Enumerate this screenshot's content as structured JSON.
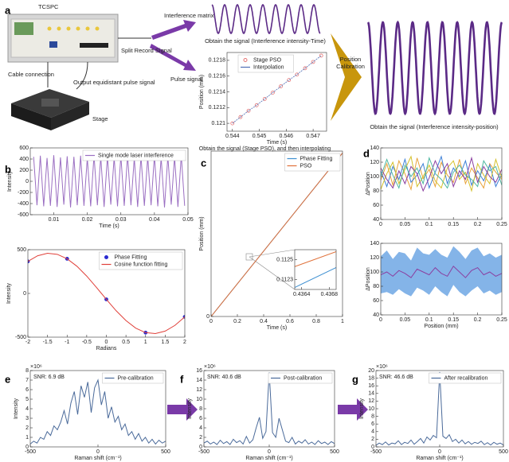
{
  "panels": [
    "a",
    "b",
    "c",
    "d",
    "e",
    "f",
    "g"
  ],
  "diagram": {
    "device": "TCSPC",
    "cable": "Cable connection",
    "pulse_out": "Output equidistant pulse signal",
    "stage": "Stage",
    "split": "Split Record Signal",
    "interference": "Interference matrix",
    "pulse": "Pulse signal",
    "caption_time": "Obtain the signal (Interference intensity-Time)",
    "calibration": [
      "Position",
      "Calibration"
    ],
    "caption_position": "Obtain the signal (Interference intensity-position)"
  },
  "chart_data": [
    {
      "type": "line",
      "caption": "Obtain the signal (Stage PSO), and then interpolating",
      "xlabel": "Time (s)",
      "ylabel": "Position (mm)",
      "x": [
        0.544,
        0.5443,
        0.5446,
        0.5449,
        0.5452,
        0.5455,
        0.5458,
        0.5461,
        0.5464,
        0.5467,
        0.547,
        0.5473
      ],
      "series": [
        {
          "name": "Stage PSO",
          "color": "#e57373",
          "style": "points",
          "values": [
            0.121,
            0.12108,
            0.12116,
            0.12123,
            0.12131,
            0.12139,
            0.12147,
            0.12155,
            0.12162,
            0.1217,
            0.12178,
            0.12186
          ]
        },
        {
          "name": "Interpolation",
          "color": "#4f6fb5",
          "values": [
            0.121,
            0.12108,
            0.12116,
            0.12123,
            0.12131,
            0.12139,
            0.12147,
            0.12155,
            0.12162,
            0.1217,
            0.12178,
            0.12186
          ]
        }
      ],
      "xlim": [
        0.5438,
        0.5475
      ],
      "xticks": [
        0.544,
        0.545,
        0.546,
        0.547
      ],
      "ylim": [
        0.1209,
        0.1219
      ],
      "yticks": [
        0.121,
        0.1212,
        0.1214,
        0.1216,
        0.1218
      ],
      "legend": "upper left"
    },
    {
      "type": "line",
      "xlabel": "Time (s)",
      "ylabel": "Intensity",
      "x": [
        0.004,
        0.005,
        0.006,
        0.007,
        0.008,
        0.009,
        0.01,
        0.011,
        0.012,
        0.013,
        0.014,
        0.015,
        0.016,
        0.017,
        0.018,
        0.019,
        0.02,
        0.021,
        0.022,
        0.023,
        0.024,
        0.025,
        0.026,
        0.027,
        0.028,
        0.029,
        0.03,
        0.031,
        0.032,
        0.033,
        0.034,
        0.035,
        0.036,
        0.037,
        0.038,
        0.039,
        0.04,
        0.041,
        0.042,
        0.043,
        0.044,
        0.045,
        0.046,
        0.047,
        0.048,
        0.049
      ],
      "series": [
        {
          "name": "Single mode laser interference",
          "color": "#9b6fc2",
          "values": [
            440,
            -430,
            460,
            -450,
            420,
            -440,
            470,
            -460,
            430,
            -420,
            450,
            -470,
            440,
            -430,
            460,
            -440,
            420,
            -450,
            470,
            -430,
            440,
            -460,
            450,
            -420,
            430,
            -450,
            460,
            -440,
            470,
            -430,
            420,
            -460,
            450,
            -440,
            440,
            -430,
            460,
            -450,
            430,
            -470,
            450,
            -420,
            440,
            -460,
            470,
            -440
          ]
        }
      ],
      "xlim": [
        0.003,
        0.05
      ],
      "xticks": [
        0.01,
        0.02,
        0.03,
        0.04,
        0.05
      ],
      "ylim": [
        -600,
        600
      ],
      "yticks": [
        -600,
        -400,
        -200,
        0,
        200,
        400,
        600
      ],
      "legend": "upper right"
    },
    {
      "type": "line",
      "xlabel": "Radians",
      "ylabel": "Intensity",
      "x": [
        -2,
        -1.75,
        -1.5,
        -1.25,
        -1,
        -0.75,
        -0.5,
        -0.25,
        0,
        0.25,
        0.5,
        0.75,
        1,
        1.25,
        1.5,
        1.75,
        2
      ],
      "series": [
        {
          "name": "Phase Fitting",
          "color": "#2a2ad0",
          "style": "points",
          "values": [
            366,
            null,
            null,
            null,
            396,
            null,
            null,
            null,
            -68,
            null,
            null,
            null,
            -448,
            null,
            null,
            null,
            -268
          ]
        },
        {
          "name": "Cosine function fitting",
          "color": "#e0403a",
          "values": [
            366,
            431,
            459,
            447,
            396,
            311,
            198,
            68,
            -68,
            -198,
            -310,
            -397,
            -448,
            -459,
            -431,
            -365,
            -268
          ]
        }
      ],
      "xlim": [
        -2,
        2
      ],
      "xticks": [
        -2,
        -1.5,
        -1,
        -0.5,
        0,
        0.5,
        1,
        1.5,
        2
      ],
      "ylim": [
        -500,
        500
      ],
      "yticks": [
        -500,
        0,
        500
      ],
      "legend": "upper right"
    },
    {
      "type": "line",
      "xlabel": "Time (s)",
      "ylabel": "Position (mm)",
      "x": [
        0,
        1
      ],
      "series": [
        {
          "name": "Phase Fitting",
          "color": "#3d8fd1",
          "values": [
            0,
            0.257
          ]
        },
        {
          "name": "PSO",
          "color": "#e0713a",
          "values": [
            0,
            0.257
          ]
        }
      ],
      "xlim": [
        0,
        1
      ],
      "xticks": [
        0,
        0.2,
        0.4,
        0.6,
        0.8,
        1
      ],
      "ylim": [
        0,
        0.26
      ],
      "yticks": [
        0
      ],
      "legend": "upper right"
    },
    {
      "type": "line",
      "x": [
        0.4363,
        0.4369
      ],
      "series": [
        {
          "color": "#3d8fd1",
          "values": [
            0.11222,
            0.11242
          ]
        },
        {
          "color": "#e0713a",
          "values": [
            0.11243,
            0.11258
          ]
        }
      ],
      "xlim": [
        0.4363,
        0.4369
      ],
      "xticks": [
        0.4364,
        0.4368
      ],
      "ylim": [
        0.1122,
        0.1126
      ],
      "yticks": [
        0.1123,
        0.1125
      ]
    },
    {
      "type": "line",
      "ylabel": "ΔPosition",
      "x": [
        0,
        0.0125,
        0.025,
        0.0375,
        0.05,
        0.0625,
        0.075,
        0.0875,
        0.1,
        0.1125,
        0.125,
        0.1375,
        0.15,
        0.1625,
        0.175,
        0.1875,
        0.2,
        0.2125,
        0.225,
        0.2375,
        0.25
      ],
      "series": [
        {
          "color": "#e8a33c",
          "values": [
            95,
            118,
            88,
            122,
            104,
            82,
            126,
            97,
            110,
            86,
            120,
            102,
            92,
            124,
            90,
            112,
            98,
            84,
            118,
            106,
            96
          ]
        },
        {
          "color": "#3c7fd6",
          "values": [
            108,
            86,
            114,
            96,
            124,
            92,
            102,
            118,
            84,
            106,
            128,
            90,
            112,
            100,
            122,
            88,
            108,
            94,
            116,
            86,
            104
          ]
        },
        {
          "color": "#d4c02a",
          "values": [
            82,
            104,
            120,
            90,
            110,
            128,
            86,
            100,
            116,
            94,
            84,
            112,
            122,
            96,
            106,
            80,
            118,
            102,
            90,
            124,
            98
          ]
        },
        {
          "color": "#8b3fa0",
          "values": [
            112,
            96,
            84,
            108,
            90,
            114,
            104,
            80,
            98,
            122,
            104,
            118,
            86,
            108,
            96,
            126,
            92,
            114,
            100,
            92,
            110
          ]
        },
        {
          "color": "#4fb8a0",
          "values": [
            100,
            124,
            102,
            84,
            116,
            100,
            112,
            90,
            126,
            104,
            96,
            84,
            106,
            116,
            102,
            96,
            86,
            122,
            108,
            114,
            88
          ]
        }
      ],
      "xlim": [
        0,
        0.25
      ],
      "xticks": [
        0,
        0.05,
        0.1,
        0.15,
        0.2,
        0.25
      ],
      "ylim": [
        40,
        140
      ],
      "yticks": [
        40,
        60,
        80,
        100,
        120,
        140
      ]
    },
    {
      "type": "line",
      "xlabel": "Position (mm)",
      "ylabel": "ΔPosition",
      "x": [
        0,
        0.0125,
        0.025,
        0.0375,
        0.05,
        0.0625,
        0.075,
        0.0875,
        0.1,
        0.1125,
        0.125,
        0.1375,
        0.15,
        0.1625,
        0.175,
        0.1875,
        0.2,
        0.2125,
        0.225,
        0.2375,
        0.25
      ],
      "band": {
        "color": "#5b9be0",
        "upper": [
          122,
          130,
          118,
          128,
          126,
          116,
          134,
          126,
          124,
          132,
          124,
          120,
          136,
          128,
          118,
          130,
          134,
          122,
          126,
          120,
          124
        ],
        "lower": [
          70,
          72,
          68,
          76,
          70,
          66,
          78,
          74,
          68,
          80,
          72,
          66,
          82,
          72,
          66,
          74,
          80,
          70,
          74,
          68,
          72
        ]
      },
      "series": [
        {
          "color": "#8b3fa0",
          "values": [
            96,
            100,
            94,
            102,
            98,
            92,
            104,
            100,
            96,
            106,
            98,
            94,
            108,
            100,
            92,
            102,
            106,
            96,
            100,
            94,
            98
          ]
        }
      ],
      "xlim": [
        0,
        0.25
      ],
      "xticks": [
        0,
        0.05,
        0.1,
        0.15,
        0.2,
        0.25
      ],
      "ylim": [
        40,
        140
      ],
      "yticks": [
        40,
        60,
        80,
        100,
        120,
        140
      ]
    },
    {
      "type": "line",
      "xlabel": "Raman shift (cm⁻¹)",
      "ylabel": "Intensity",
      "y_scale_label": "×10⁶",
      "annotation": "SNR: 6.9 dB",
      "x": [
        -500,
        -475,
        -450,
        -425,
        -400,
        -375,
        -350,
        -325,
        -300,
        -275,
        -250,
        -225,
        -200,
        -175,
        -150,
        -125,
        -100,
        -75,
        -50,
        -25,
        0,
        25,
        50,
        75,
        100,
        125,
        150,
        175,
        200,
        225,
        250,
        275,
        300,
        325,
        350,
        375,
        400,
        425,
        450,
        475,
        500
      ],
      "series": [
        {
          "name": "Pre-calibration",
          "color": "#4a6a9a",
          "values": [
            0.3,
            0.6,
            0.4,
            1.0,
            0.8,
            1.6,
            1.2,
            2.2,
            1.8,
            2.6,
            3.8,
            2.4,
            4.6,
            5.8,
            3.4,
            6.4,
            5.2,
            6.8,
            3.6,
            6.2,
            7.0,
            4.4,
            5.8,
            3.0,
            4.2,
            2.6,
            3.2,
            1.8,
            2.4,
            1.2,
            1.6,
            0.8,
            1.4,
            0.6,
            1.0,
            0.4,
            0.8,
            0.3,
            0.7,
            0.4,
            0.6
          ]
        }
      ],
      "xlim": [
        -500,
        500
      ],
      "xticks": [
        -500,
        0,
        500
      ],
      "ylim": [
        0,
        8
      ],
      "yticks": [
        0,
        1,
        2,
        3,
        4,
        5,
        6,
        7,
        8
      ],
      "legend": "upper right"
    },
    {
      "type": "line",
      "xlabel": "Raman shift (cm⁻¹)",
      "ylabel": "Intensity",
      "y_scale_label": "×10⁶",
      "annotation": "SNR: 40.6 dB",
      "x": [
        -500,
        -475,
        -450,
        -425,
        -400,
        -375,
        -350,
        -325,
        -300,
        -275,
        -250,
        -225,
        -200,
        -175,
        -150,
        -125,
        -100,
        -75,
        -50,
        -25,
        0,
        25,
        50,
        75,
        100,
        125,
        150,
        175,
        200,
        225,
        250,
        275,
        300,
        325,
        350,
        375,
        400,
        425,
        450,
        475,
        500
      ],
      "series": [
        {
          "name": "Post-calibration",
          "color": "#4a6a9a",
          "values": [
            0.8,
            1.2,
            0.6,
            1.0,
            0.5,
            1.4,
            0.7,
            1.1,
            0.5,
            1.6,
            0.9,
            1.3,
            0.6,
            2.2,
            0.8,
            1.5,
            4.0,
            6.2,
            1.8,
            3.2,
            15.6,
            3.0,
            2.0,
            6.0,
            3.6,
            1.2,
            0.9,
            2.0,
            0.6,
            1.2,
            0.8,
            1.5,
            0.6,
            1.0,
            0.5,
            1.3,
            0.7,
            1.0,
            0.5,
            1.1,
            0.7
          ]
        }
      ],
      "xlim": [
        -500,
        500
      ],
      "xticks": [
        -500,
        0,
        500
      ],
      "ylim": [
        0,
        16
      ],
      "yticks": [
        0,
        2,
        4,
        6,
        8,
        10,
        12,
        14,
        16
      ],
      "legend": "upper right"
    },
    {
      "type": "line",
      "xlabel": "Raman shift (cm⁻¹)",
      "ylabel": "Intensity",
      "y_scale_label": "×10⁶",
      "annotation": "SNR: 46.6 dB",
      "x": [
        -500,
        -475,
        -450,
        -425,
        -400,
        -375,
        -350,
        -325,
        -300,
        -275,
        -250,
        -225,
        -200,
        -175,
        -150,
        -125,
        -100,
        -75,
        -50,
        -25,
        0,
        25,
        50,
        75,
        100,
        125,
        150,
        175,
        200,
        225,
        250,
        275,
        300,
        325,
        350,
        375,
        400,
        425,
        450,
        475,
        500
      ],
      "series": [
        {
          "name": "After recalibration",
          "color": "#4a6a9a",
          "values": [
            0.4,
            1.0,
            0.6,
            1.3,
            0.5,
            1.0,
            0.8,
            1.6,
            0.6,
            1.2,
            0.9,
            1.8,
            0.7,
            1.4,
            2.2,
            1.0,
            2.6,
            1.8,
            3.0,
            2.4,
            19.6,
            2.8,
            2.2,
            3.2,
            1.4,
            2.0,
            1.0,
            1.8,
            0.8,
            1.4,
            0.7,
            1.2,
            0.9,
            1.5,
            0.6,
            1.1,
            0.5,
            1.2,
            0.7,
            1.0,
            0.5
          ]
        }
      ],
      "xlim": [
        -500,
        500
      ],
      "xticks": [
        -500,
        0,
        500
      ],
      "ylim": [
        0,
        20
      ],
      "yticks": [
        0,
        2,
        4,
        6,
        8,
        10,
        12,
        14,
        16,
        18,
        20
      ],
      "legend": "upper right"
    }
  ]
}
